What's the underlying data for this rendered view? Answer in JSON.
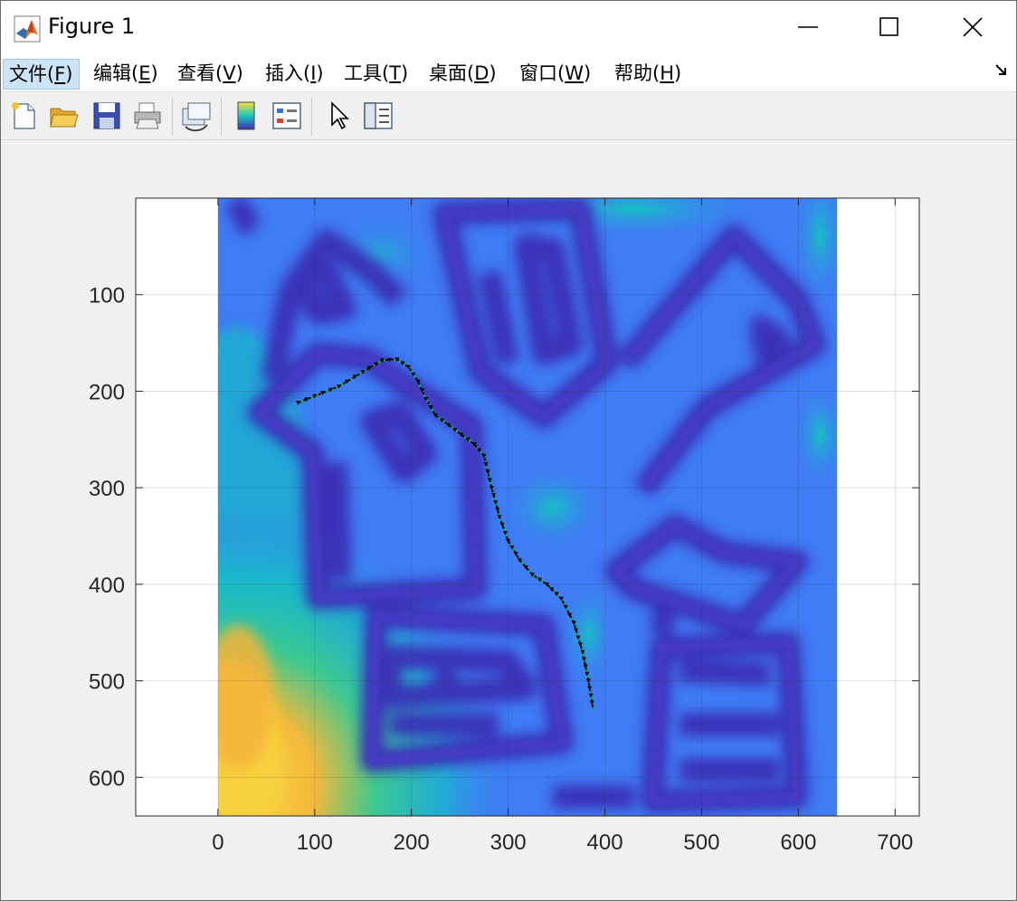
{
  "window": {
    "title": "Figure 1"
  },
  "menu": [
    {
      "label": "文件(F)",
      "pre": "文件(",
      "key": "F",
      "post": ")"
    },
    {
      "label": "编辑(E)",
      "pre": "编辑(",
      "key": "E",
      "post": ")"
    },
    {
      "label": "查看(V)",
      "pre": "查看(",
      "key": "V",
      "post": ")"
    },
    {
      "label": "插入(I)",
      "pre": "插入(",
      "key": "I",
      "post": ")"
    },
    {
      "label": "工具(T)",
      "pre": "工具(",
      "key": "T",
      "post": ")"
    },
    {
      "label": "桌面(D)",
      "pre": "桌面(",
      "key": "D",
      "post": ")"
    },
    {
      "label": "窗口(W)",
      "pre": "窗口(",
      "key": "W",
      "post": ")"
    },
    {
      "label": "帮助(H)",
      "pre": "帮助(",
      "key": "H",
      "post": ")"
    }
  ],
  "toolbar_icons": [
    "new-file-icon",
    "open-folder-icon",
    "save-icon",
    "print-icon",
    "link-plot-icon",
    "colorbar-icon",
    "legend-icon",
    "pointer-icon",
    "property-inspector-icon"
  ],
  "colors": {
    "path": "#000000",
    "low": "#3d2fb3",
    "mid": "#3f7cf5",
    "teal": "#0fbfbf",
    "high": "#f7d03c"
  },
  "chart_data": {
    "type": "heatmap",
    "title": "",
    "xlabel": "",
    "ylabel": "",
    "xlim": [
      -85,
      725
    ],
    "ylim": [
      640,
      0
    ],
    "xticks": [
      0,
      100,
      200,
      300,
      400,
      500,
      600,
      700
    ],
    "yticks": [
      100,
      200,
      300,
      400,
      500,
      600
    ],
    "image_extent": {
      "x": [
        0,
        640
      ],
      "y": [
        0,
        640
      ]
    },
    "grid": true,
    "path": {
      "style": "black dotted with triangle markers",
      "x": [
        83,
        100,
        125,
        150,
        170,
        185,
        197,
        207,
        215,
        225,
        245,
        265,
        275,
        283,
        291,
        300,
        312,
        325,
        340,
        355,
        368,
        377,
        383,
        388
      ],
      "y": [
        212,
        205,
        195,
        180,
        168,
        167,
        175,
        190,
        208,
        225,
        240,
        255,
        267,
        300,
        330,
        355,
        375,
        390,
        400,
        415,
        440,
        470,
        500,
        530
      ]
    }
  }
}
